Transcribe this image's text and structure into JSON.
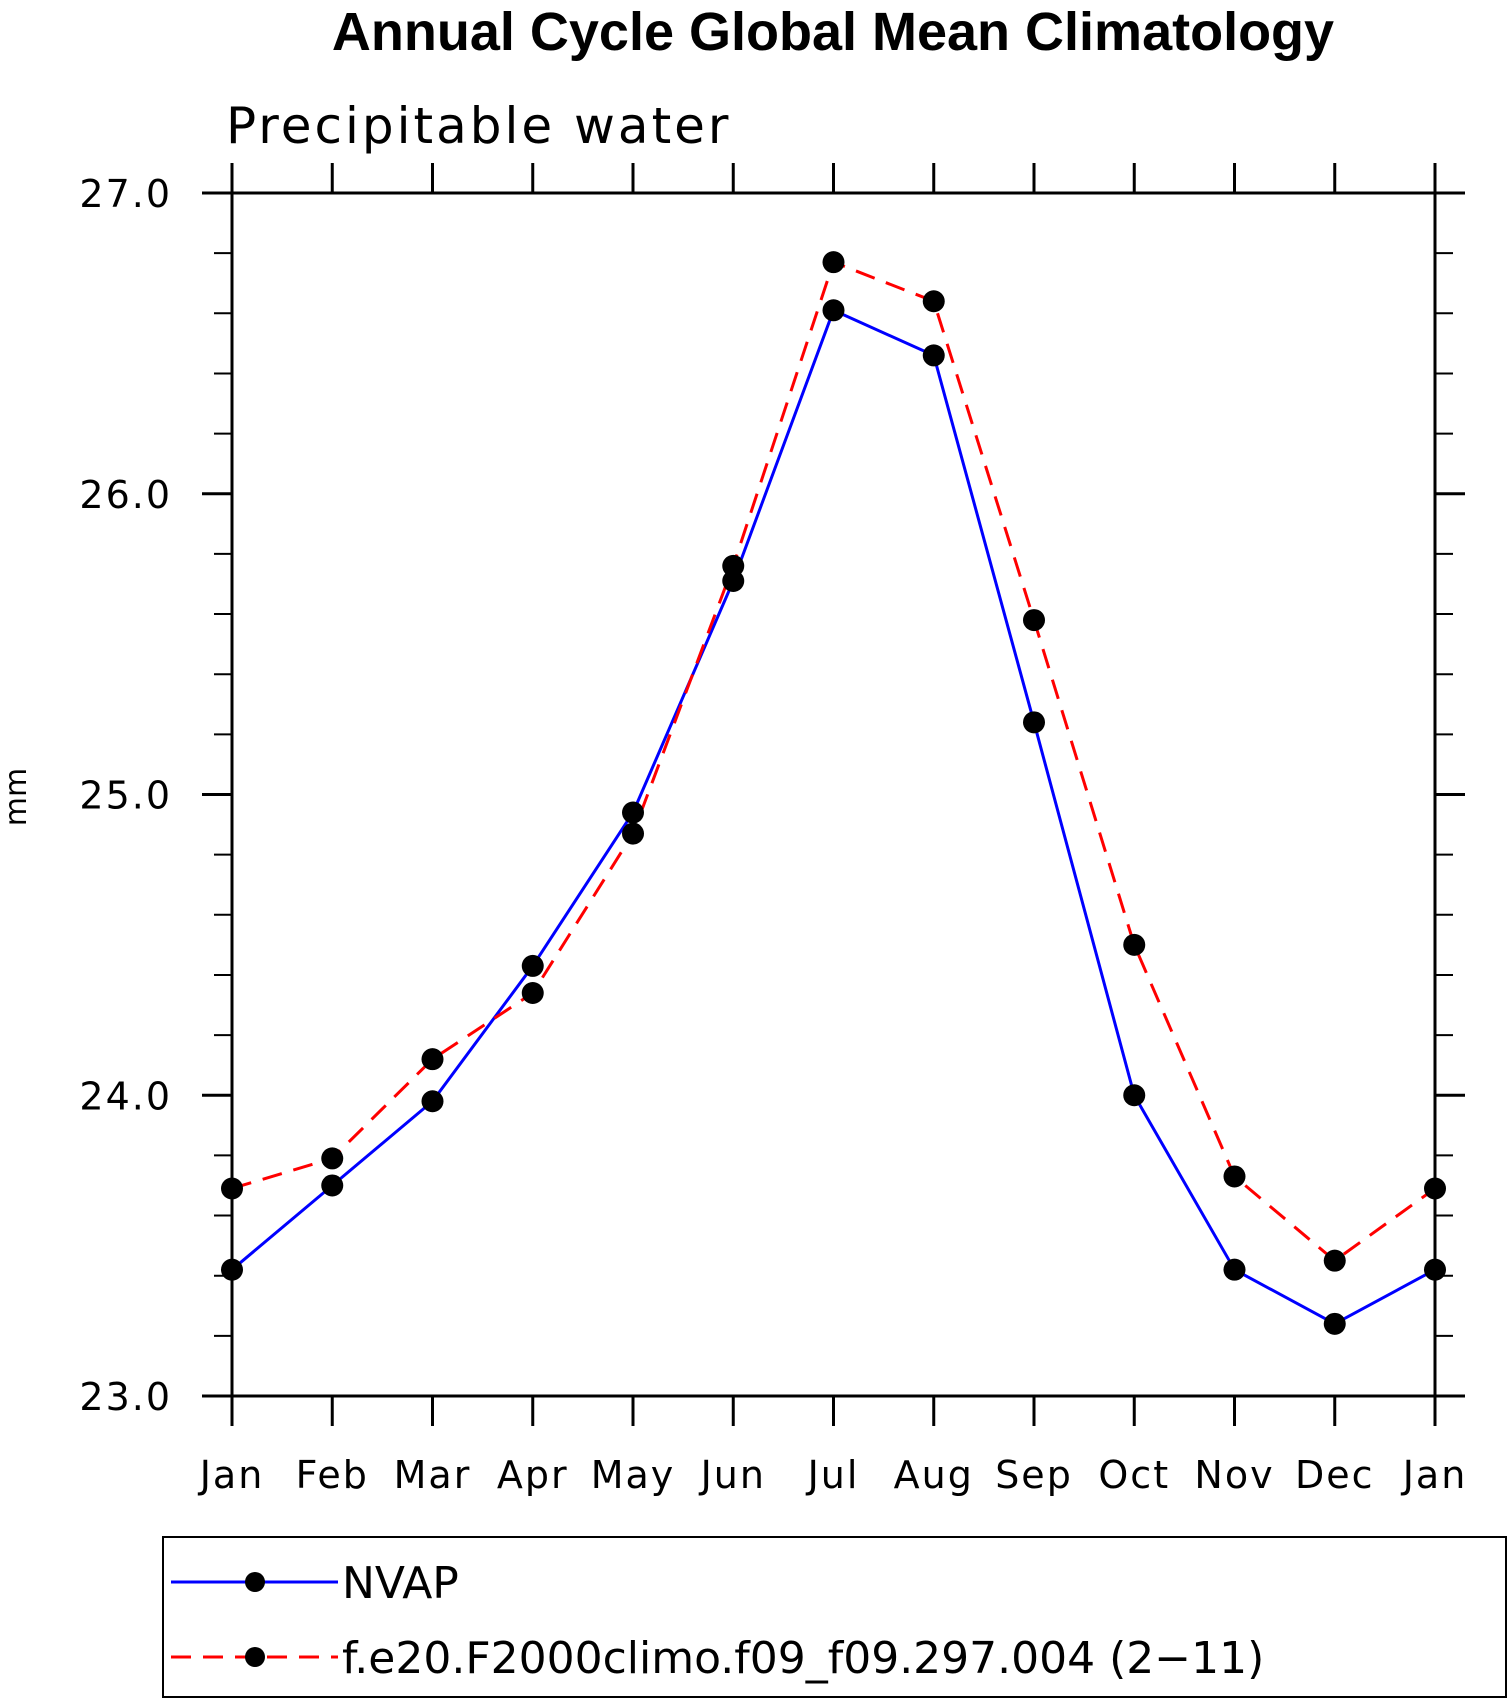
{
  "chart_data": {
    "type": "line",
    "title": "Annual Cycle Global Mean Climatology",
    "subtitle": "Precipitable water",
    "xlabel": "",
    "ylabel": "mm",
    "categories": [
      "Jan",
      "Feb",
      "Mar",
      "Apr",
      "May",
      "Jun",
      "Jul",
      "Aug",
      "Sep",
      "Oct",
      "Nov",
      "Dec",
      "Jan"
    ],
    "ylim": [
      23.0,
      27.0
    ],
    "yticks": [
      "23.0",
      "24.0",
      "25.0",
      "26.0",
      "27.0"
    ],
    "grid": false,
    "legend_position": "bottom",
    "series": [
      {
        "name": "NVAP",
        "color": "#0000ff",
        "line_style": "solid",
        "marker": "filled-circle",
        "values": [
          23.42,
          23.7,
          23.98,
          24.43,
          24.94,
          25.71,
          26.61,
          26.46,
          25.24,
          24.0,
          23.42,
          23.24,
          23.42
        ]
      },
      {
        "name": "f.e20.F2000climo.f09_f09.297.004 (2−11)",
        "color": "#ff0000",
        "line_style": "dashed",
        "marker": "filled-circle",
        "values": [
          23.69,
          23.79,
          24.12,
          24.34,
          24.87,
          25.76,
          26.77,
          26.64,
          25.58,
          24.5,
          23.73,
          23.45,
          23.69
        ]
      }
    ]
  }
}
